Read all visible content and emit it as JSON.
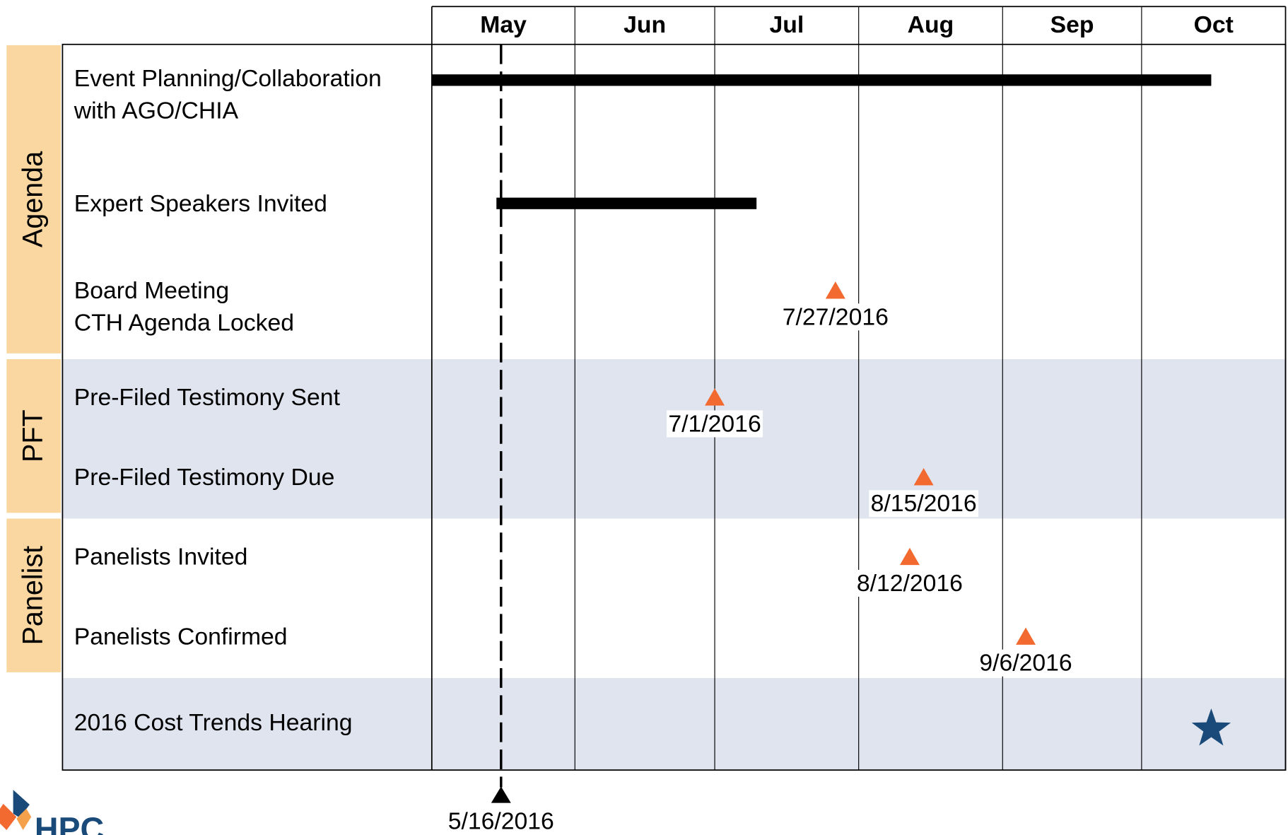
{
  "chart_data": {
    "type": "gantt",
    "months": [
      "May",
      "Jun",
      "Jul",
      "Aug",
      "Sep",
      "Oct"
    ],
    "groups": [
      {
        "label": "Agenda"
      },
      {
        "label": "PFT"
      },
      {
        "label": "Panelist"
      }
    ],
    "tasks": [
      {
        "label": [
          "Event Planning/Collaboration",
          "with AGO/CHIA"
        ],
        "start": "5/1/2016",
        "end": "10/16/2016"
      },
      {
        "label": [
          "Expert Speakers Invited"
        ],
        "start": "5/15/2016",
        "end": "7/10/2016"
      },
      {
        "label": [
          "Board Meeting",
          "CTH Agenda Locked"
        ],
        "milestone": "7/27/2016"
      },
      {
        "label": [
          "Pre-Filed Testimony Sent"
        ],
        "milestone": "7/1/2016"
      },
      {
        "label": [
          "Pre-Filed Testimony Due"
        ],
        "milestone": "8/15/2016"
      },
      {
        "label": [
          "Panelists Invited"
        ],
        "milestone": "8/12/2016"
      },
      {
        "label": [
          "Panelists Confirmed"
        ],
        "milestone": "9/6/2016"
      },
      {
        "label": [
          "2016 Cost Trends Hearing"
        ],
        "star": "10/16/2016"
      }
    ],
    "today": "5/16/2016",
    "logo": "HPC"
  }
}
